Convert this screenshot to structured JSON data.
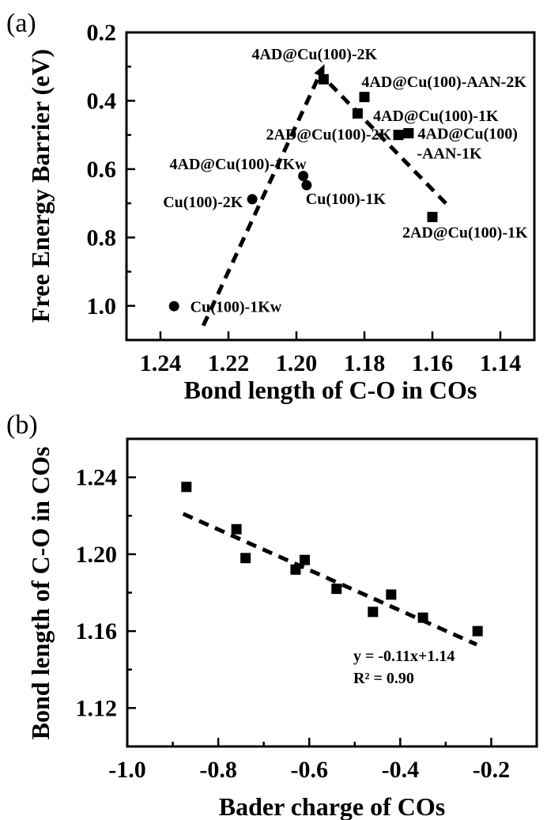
{
  "figure": {
    "background": "#ffffff",
    "accent_red": "#c9181d",
    "panel_a_label": "(a)",
    "panel_b_label": "(b)"
  },
  "chart_data": [
    {
      "type": "scatter",
      "panel": "a",
      "title": "",
      "xlabel": "Bond length of C-O in COs",
      "ylabel": "Free Energy Barrier (eV)",
      "x_axis_reversed": true,
      "y_axis_inverted": true,
      "xlim_left_to_right": [
        1.25,
        1.13
      ],
      "ylim_top_to_bottom": [
        0.2,
        1.1
      ],
      "x_tick_values": [
        1.24,
        1.22,
        1.2,
        1.18,
        1.16,
        1.14
      ],
      "x_tick_labels": [
        "1.24",
        "1.22",
        "1.20",
        "1.18",
        "1.16",
        "1.14"
      ],
      "x_minor_tick_values": [],
      "y_tick_values": [
        0.2,
        0.4,
        0.6,
        0.8,
        1.0
      ],
      "y_tick_labels": [
        "0.2",
        "0.4",
        "0.6",
        "0.8",
        "1.0"
      ],
      "y_minor_tick_values": [
        0.3,
        0.5,
        0.7,
        0.9
      ],
      "points": [
        {
          "name": "Cu(100)-1Kw",
          "marker": "circle",
          "x": 1.236,
          "y": 1.001,
          "label": {
            "color": "#000000",
            "lines": [
              {
                "text": "Cu(100)-1Kw",
                "x": 1.2178,
                "y": 1.002
              }
            ]
          }
        },
        {
          "name": "Cu(100)-2K",
          "marker": "circle",
          "x": 1.213,
          "y": 0.688,
          "label": {
            "color": "#000000",
            "lines": [
              {
                "text": "Cu(100)-2K",
                "x": 1.2275,
                "y": 0.695
              }
            ]
          }
        },
        {
          "name": "Cu(100)-1K",
          "marker": "circle",
          "x": 1.197,
          "y": 0.647,
          "label": {
            "color": "#000000",
            "lines": [
              {
                "text": "Cu(100)-1K",
                "x": 1.1855,
                "y": 0.686
              }
            ]
          }
        },
        {
          "name": "4AD@Cu(100)-1Kw",
          "marker": "circle",
          "x": 1.198,
          "y": 0.62,
          "label": {
            "color": "#000000",
            "lines": [
              {
                "text": "4AD@Cu(100)-1Kw",
                "x": 1.2172,
                "y": 0.584
              }
            ]
          }
        },
        {
          "name": "4AD@Cu(100)-2K",
          "marker": "square",
          "x": 1.192,
          "y": 0.337,
          "label": {
            "color": "#c9181d",
            "lines": [
              {
                "text": "4AD@Cu(100)-2K",
                "x": 1.1947,
                "y": 0.262
              }
            ]
          }
        },
        {
          "name": "4AD@Cu(100)-AAN-2K",
          "marker": "square",
          "x": 1.18,
          "y": 0.389,
          "label": {
            "color": "#000000",
            "lines": [
              {
                "text": "4AD@Cu(100)-AAN-2K",
                "x": 1.1566,
                "y": 0.343
              }
            ]
          }
        },
        {
          "name": "4AD@Cu(100)-1K",
          "marker": "square",
          "x": 1.182,
          "y": 0.437,
          "label": {
            "color": "#000000",
            "lines": [
              {
                "text": "4AD@Cu(100)-1K",
                "x": 1.159,
                "y": 0.443
              }
            ]
          }
        },
        {
          "name": "2AD@Cu(100)-2K",
          "marker": "square",
          "x": 1.17,
          "y": 0.5,
          "label": {
            "color": "#000000",
            "lines": [
              {
                "text": "2AD@Cu(100)-2K",
                "x": 1.1905,
                "y": 0.497
              }
            ]
          }
        },
        {
          "name": "4AD@Cu(100)-AAN-1K",
          "marker": "square",
          "x": 1.167,
          "y": 0.495,
          "label": {
            "color": "#000000",
            "lines": [
              {
                "text": "4AD@Cu(100)",
                "x": 1.1496,
                "y": 0.495
              },
              {
                "text": "-AAN-1K",
                "x": 1.155,
                "y": 0.553
              }
            ]
          }
        },
        {
          "name": "2AD@Cu(100)-1K",
          "marker": "square",
          "x": 1.16,
          "y": 0.74,
          "label": {
            "color": "#000000",
            "lines": [
              {
                "text": "2AD@Cu(100)-1K",
                "x": 1.1504,
                "y": 0.784
              }
            ]
          }
        }
      ],
      "guide_lines": [
        {
          "name": "volcano-ascending",
          "x1": 1.2274,
          "y1": 1.058,
          "x2": 1.193,
          "y2": 0.32,
          "arrow_at_end": true
        },
        {
          "name": "volcano-descending",
          "x1": 1.1902,
          "y1": 0.35,
          "x2": 1.1547,
          "y2": 0.714,
          "arrow_at_end": false
        }
      ]
    },
    {
      "type": "scatter",
      "panel": "b",
      "title": "",
      "xlabel": "Bader charge of COs",
      "ylabel": "Bond length of C-O in COs",
      "x_axis_reversed": false,
      "y_axis_inverted": false,
      "xlim_left_to_right": [
        -1.0,
        -0.1
      ],
      "ylim_top_to_bottom": [
        1.26,
        1.1
      ],
      "x_tick_values": [
        -1.0,
        -0.8,
        -0.6,
        -0.4,
        -0.2
      ],
      "x_tick_labels": [
        "-1.0",
        "-0.8",
        "-0.6",
        "-0.4",
        "-0.2"
      ],
      "x_minor_tick_values": [
        -0.9,
        -0.7,
        -0.5,
        -0.3
      ],
      "y_tick_values": [
        1.24,
        1.2,
        1.16,
        1.12
      ],
      "y_tick_labels": [
        "1.24",
        "1.20",
        "1.16",
        "1.12"
      ],
      "y_minor_tick_values": [
        1.22,
        1.18,
        1.14
      ],
      "points": [
        {
          "marker": "square",
          "x": -0.87,
          "y": 1.235
        },
        {
          "marker": "square",
          "x": -0.76,
          "y": 1.213
        },
        {
          "marker": "square",
          "x": -0.74,
          "y": 1.198
        },
        {
          "marker": "square",
          "x": -0.63,
          "y": 1.192
        },
        {
          "marker": "square",
          "x": -0.61,
          "y": 1.197
        },
        {
          "marker": "square",
          "x": -0.54,
          "y": 1.182
        },
        {
          "marker": "square",
          "x": -0.46,
          "y": 1.17
        },
        {
          "marker": "square",
          "x": -0.42,
          "y": 1.179
        },
        {
          "marker": "square",
          "x": -0.35,
          "y": 1.167
        },
        {
          "marker": "square",
          "x": -0.23,
          "y": 1.16
        }
      ],
      "fit_line": {
        "x1": -0.877,
        "y1": 1.221,
        "x2": -0.232,
        "y2": 1.153,
        "slope": -0.11,
        "intercept": 1.14,
        "r_squared": 0.9
      },
      "annotation_line1": "y = -0.11x+1.14",
      "annotation_line2": "R² = 0.90"
    }
  ]
}
